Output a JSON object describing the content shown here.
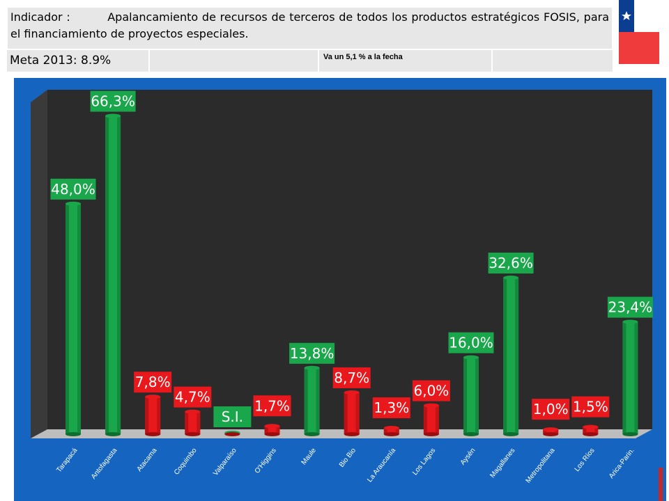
{
  "header": {
    "indicator_label": "Indicador :",
    "indicator_text": "Apalancamiento de recursos de terceros de todos los productos estratégicos FOSIS, para el financiamiento de proyectos especiales.",
    "meta_label": "Meta 2013: 8.9%",
    "progress_note": "Va un 5,1 % a la fecha"
  },
  "colors": {
    "above_target": "#1aa64a",
    "below_target": "#e8181c",
    "background": "#1565c0",
    "plot_wall": "#2b2b2b"
  },
  "chart_data": {
    "type": "bar",
    "title": "",
    "xlabel": "",
    "ylabel": "",
    "ylim": [
      0,
      70
    ],
    "categories": [
      "Tarapacá",
      "Antofagasta",
      "Atacama",
      "Coquimbo",
      "Valparaíso",
      "O'Higgins",
      "Maule",
      "Bio Bio",
      "La Araucanía",
      "Los Lagos",
      "Aysén",
      "Magallanes",
      "Metropolitana",
      "Los Ríos",
      "Arica-Parin."
    ],
    "values": [
      48.0,
      66.3,
      7.8,
      4.7,
      null,
      1.7,
      13.8,
      8.7,
      1.3,
      6.0,
      16.0,
      32.6,
      1.0,
      1.5,
      23.4
    ],
    "labels": [
      "48,0%",
      "66,3%",
      "7,8%",
      "4,7%",
      "S.I.",
      "1,7%",
      "13,8%",
      "8,7%",
      "1,3%",
      "6,0%",
      "16,0%",
      "32,6%",
      "1,0%",
      "1,5%",
      "23,4%"
    ],
    "status": [
      "above",
      "above",
      "below",
      "below",
      "none",
      "below",
      "above",
      "below",
      "below",
      "below",
      "above",
      "above",
      "below",
      "below",
      "above"
    ]
  }
}
